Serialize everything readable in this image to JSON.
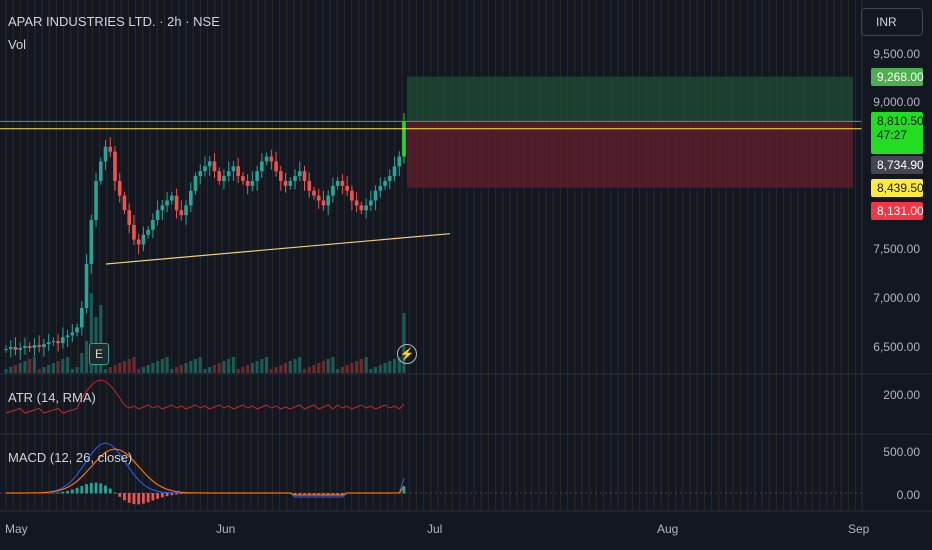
{
  "header": {
    "title": "APAR INDUSTRIES LTD. · 2h · NSE",
    "volume_label": "Vol",
    "currency": "INR"
  },
  "indicators": {
    "atr_label": "ATR (14, RMA)",
    "macd_label": "MACD (12, 26, close)"
  },
  "price_tags": {
    "target": "9,268.00",
    "last": "8,810.50",
    "countdown": "47:27",
    "entry_line": "8,734.90",
    "low_marker": "8,439.50",
    "stop": "8,131.00"
  },
  "colors": {
    "up": "#26a69a",
    "bright_up": "#22dd22",
    "down": "#ef5350",
    "target_tag": "#4caf50",
    "last_tag": "#22ab94",
    "entry_tag": "#434651",
    "low_tag": "#ffeb3b",
    "stop_tag": "#f23645",
    "trend": "#f0d070",
    "atr_line": "#c62828",
    "macd_line": "#2962ff",
    "signal_line": "#ff6d00"
  },
  "markers": {
    "earnings_icon": "E",
    "flash_icon": "lightning-icon"
  },
  "chart_data": {
    "type": "line",
    "price_axis": {
      "ticks": [
        "9,500.00",
        "9,000.00",
        "7,500.00",
        "7,000.00",
        "6,500.00"
      ],
      "tick_values": [
        9500,
        9000,
        7500,
        7000,
        6500
      ]
    },
    "x_axis": {
      "ticks": [
        "May",
        "Jun",
        "Jul",
        "Aug",
        "Sep"
      ]
    },
    "atr_axis": {
      "ticks": [
        "200.00"
      ]
    },
    "macd_axis": {
      "ticks": [
        "500.00",
        "0.00"
      ]
    },
    "price_series_closes": [
      6480,
      6500,
      6470,
      6490,
      6510,
      6490,
      6520,
      6500,
      6530,
      6550,
      6560,
      6540,
      6600,
      6620,
      6650,
      6700,
      6900,
      7350,
      7800,
      8200,
      8400,
      8550,
      8500,
      8200,
      8050,
      7900,
      7750,
      7600,
      7550,
      7650,
      7700,
      7800,
      7900,
      7950,
      8000,
      8050,
      7900,
      7850,
      7950,
      8100,
      8250,
      8300,
      8350,
      8400,
      8300,
      8200,
      8250,
      8300,
      8350,
      8250,
      8200,
      8150,
      8200,
      8300,
      8400,
      8450,
      8400,
      8300,
      8200,
      8150,
      8200,
      8250,
      8300,
      8200,
      8100,
      8050,
      8000,
      7950,
      8050,
      8150,
      8200,
      8150,
      8100,
      8000,
      7950,
      7900,
      7950,
      8000,
      8100,
      8150,
      8200,
      8250,
      8350,
      8450,
      8810
    ],
    "trendline": {
      "from": [
        7350,
        "May"
      ],
      "to": [
        7660,
        "Jul"
      ]
    },
    "target_zone": [
      8810,
      9268
    ],
    "stop_zone": [
      8131,
      8810
    ],
    "horizontal_lines": [
      8734.9,
      8810.5
    ]
  }
}
